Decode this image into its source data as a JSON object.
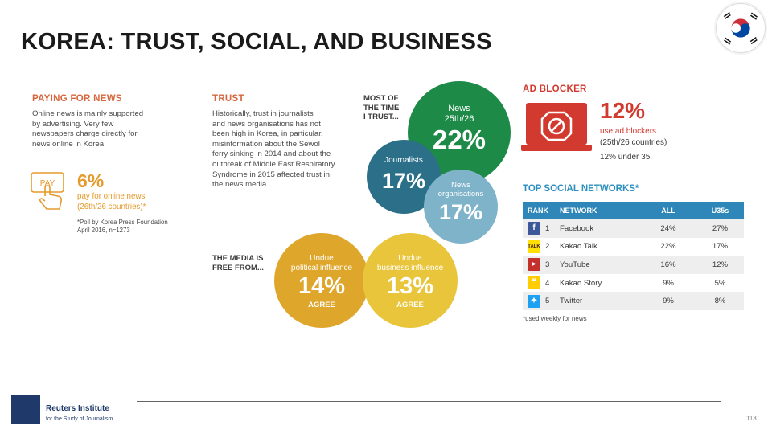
{
  "title": "KOREA: TRUST, SOCIAL, AND BUSINESS",
  "paying": {
    "heading": "PAYING FOR NEWS",
    "body": [
      "Online news is mainly supported",
      "by advertising. Very few",
      "newspapers charge directly for",
      "news online in Korea."
    ],
    "pay_label": "PAY",
    "stat": "6%",
    "stat_line1": "pay for online news",
    "stat_line2": "(26th/26 countries)*",
    "note_line1": "*Poll by Korea Press Foundation",
    "note_line2": "April 2016, n=1273"
  },
  "trust": {
    "heading": "TRUST",
    "body": [
      "Historically, trust in journalists",
      "and news organisations has not",
      "been high in Korea, in particular,",
      "misinformation about the Sewol",
      "ferry sinking in 2014 and about the",
      "outbreak of Middle East Respiratory",
      "Syndrome in 2015 affected trust in",
      "the news media."
    ]
  },
  "trust_chart": {
    "lead": [
      "MOST OF",
      "THE TIME",
      "I TRUST..."
    ],
    "news_label": [
      "News",
      "25th/26"
    ],
    "news_value": "22%",
    "journalists_label": "Journalists",
    "journalists_value": "17%",
    "orgs_label": [
      "News",
      "organisations"
    ],
    "orgs_value": "17%",
    "colors": {
      "news": "#1e8a48",
      "journalists": "#2b6f89",
      "orgs": "#7fb3c9"
    }
  },
  "media_free": {
    "lead": [
      "THE MEDIA IS",
      "FREE FROM..."
    ],
    "political_label": [
      "Undue",
      "political influence"
    ],
    "political_value": "14%",
    "business_label": [
      "Undue",
      "business influence"
    ],
    "business_value": "13%",
    "agree": "AGREE",
    "colors": {
      "political": "#dea62b",
      "business": "#e8c53a"
    }
  },
  "ad_blocker": {
    "heading": "AD BLOCKER",
    "stat": "12%",
    "line1": "use ad blockers.",
    "line2": "(25th/26 countries)",
    "line3": "12% under 35."
  },
  "networks": {
    "heading": "TOP SOCIAL NETWORKS*",
    "columns": [
      "RANK",
      "NETWORK",
      "ALL",
      "U35s"
    ],
    "rows": [
      {
        "icon": "facebook-icon",
        "rank": "1",
        "name": "Facebook",
        "all": "24%",
        "u35": "27%"
      },
      {
        "icon": "kakao-talk-icon",
        "rank": "2",
        "name": "Kakao Talk",
        "all": "22%",
        "u35": "17%"
      },
      {
        "icon": "youtube-icon",
        "rank": "3",
        "name": "YouTube",
        "all": "16%",
        "u35": "12%"
      },
      {
        "icon": "kakao-story-icon",
        "rank": "4",
        "name": "Kakao Story",
        "all": "9%",
        "u35": "5%"
      },
      {
        "icon": "twitter-icon",
        "rank": "5",
        "name": "Twitter",
        "all": "9%",
        "u35": "8%"
      }
    ],
    "footnote": "*used weekly for news"
  },
  "footer": {
    "org_name": "Reuters Institute",
    "org_sub": "for the Study of Journalism",
    "page": "113"
  }
}
